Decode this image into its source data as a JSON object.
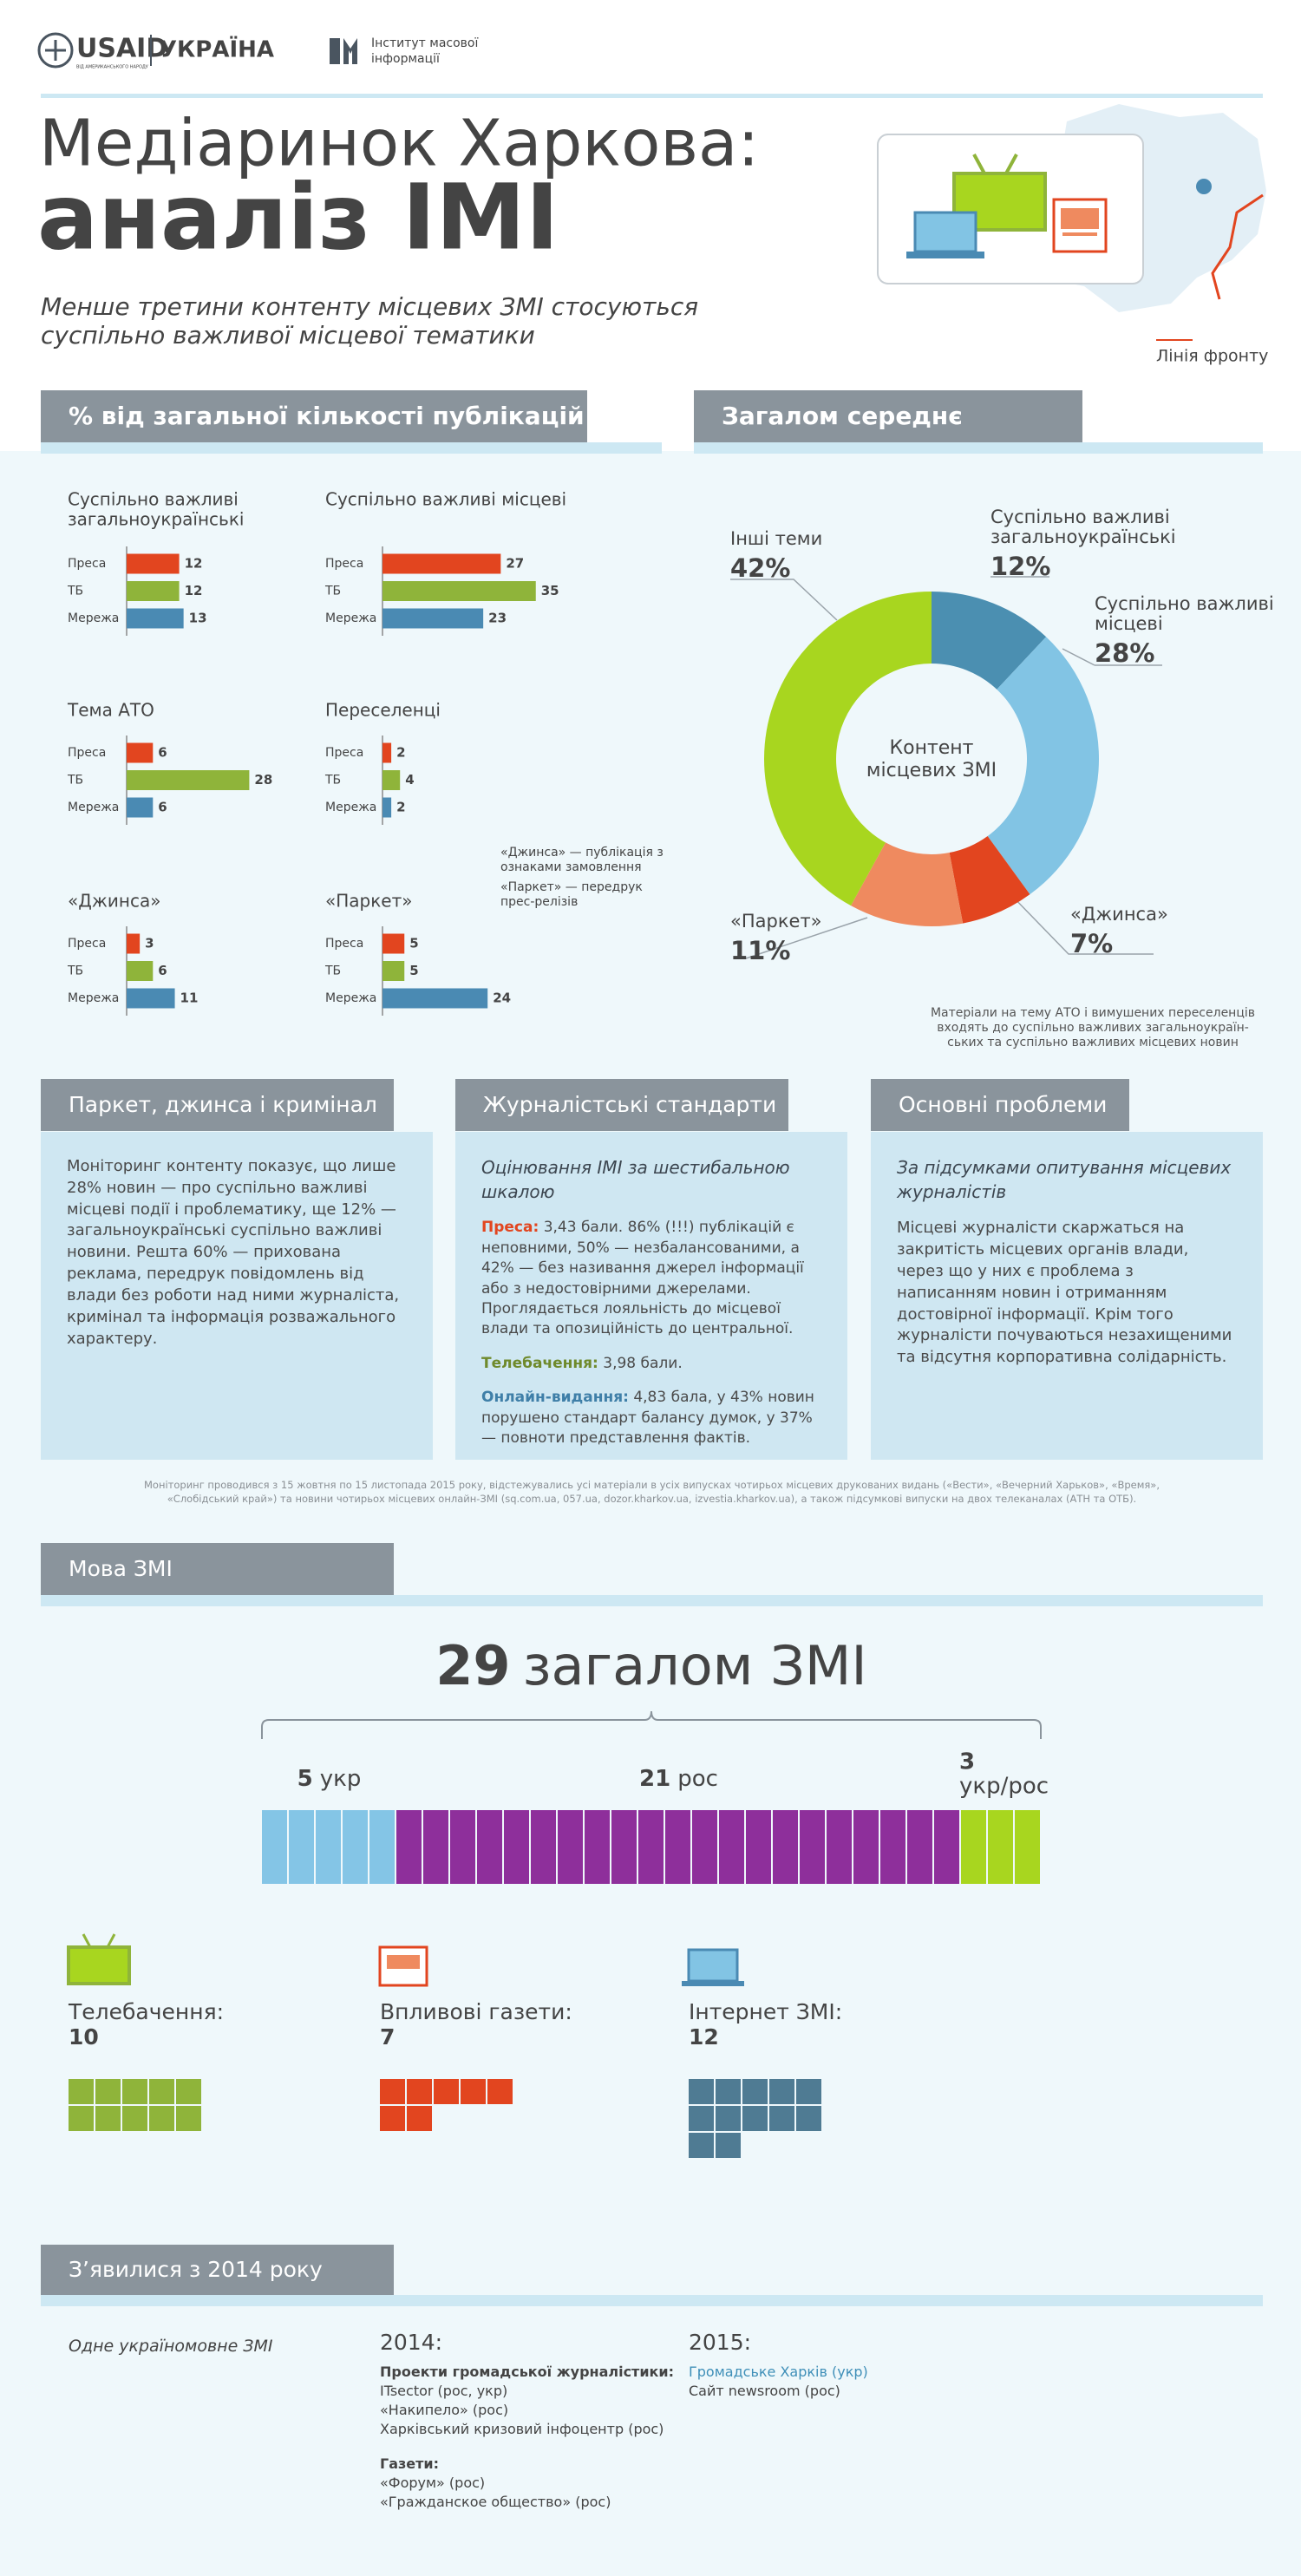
{
  "header": {
    "usaid": "USAID",
    "usaid_sub": "ВІД АМЕРИКАНСЬКОГО НАРОДУ",
    "country": "УКРАЇНА",
    "imi": [
      "Інститут масової",
      "інформації"
    ]
  },
  "title": [
    "Медіаринок Харкова:",
    "аналіз ІМІ"
  ],
  "subtitle": [
    "Менше третини контенту місцевих ЗМІ стосуються",
    "суспільно важливої місцевої тематики"
  ],
  "map_legend": "Лінія фронту",
  "publications": {
    "heading": "% від загальної кількості публікацій",
    "row_labels": [
      "Преса",
      "ТБ",
      "Мережа"
    ],
    "colors": [
      "#e2451f",
      "#8fb43a",
      "#4a8ab3"
    ],
    "charts": [
      {
        "title": [
          "Суспільно важливі",
          "загальноукраїнські"
        ],
        "values": [
          12,
          12,
          13
        ]
      },
      {
        "title": [
          "Суспільно важливі місцеві"
        ],
        "values": [
          27,
          35,
          23
        ]
      },
      {
        "title": [
          "Тема АТО"
        ],
        "values": [
          6,
          28,
          6
        ]
      },
      {
        "title": [
          "Переселенці"
        ],
        "values": [
          2,
          4,
          2
        ]
      },
      {
        "title": [
          "«Джинса»"
        ],
        "values": [
          3,
          6,
          11
        ]
      },
      {
        "title": [
          "«Паркет»"
        ],
        "values": [
          5,
          5,
          24
        ]
      }
    ],
    "notes": [
      [
        "«Джинса» — публікація з",
        "ознаками замовлення"
      ],
      [
        "«Паркет» — передрук",
        "прес-релізів"
      ]
    ]
  },
  "average": {
    "heading": "Загалом середнє",
    "center": [
      "Контент",
      "місцевих ЗМІ"
    ],
    "segments": [
      {
        "name": [
          "Суспільно важливі",
          "загальноукраїнські"
        ],
        "value": 12,
        "value_label": "12%",
        "color": "#4b8fb1"
      },
      {
        "name": [
          "Суспільно важливі",
          "місцеві"
        ],
        "value": 28,
        "value_label": "28%",
        "color": "#82c4e4"
      },
      {
        "name": [
          "«Джинса»"
        ],
        "value": 7,
        "value_label": "7%",
        "color": "#e2451f"
      },
      {
        "name": [
          "«Паркет»"
        ],
        "value": 11,
        "value_label": "11%",
        "color": "#ef8a5f"
      },
      {
        "name": [
          "Інші теми"
        ],
        "value": 42,
        "value_label": "42%",
        "color": "#a8d61f"
      }
    ],
    "note": [
      "Матеріали на тему АТО і вимушених переселенців",
      "входять до суспільно важливих загальноукраїн-",
      "ських та суспільно важливих місцевих новин"
    ]
  },
  "panels": [
    {
      "heading": "Паркет, джинса і кримінал",
      "text": "Моніторинг контенту показує, що лише 28% новин — про суспільно важливі місцеві події і проблематику, ще 12% — загально­українські суспільно важливі новини. Решта 60% — прихована реклама, передрук повідомлень від влади без роботи над ними журналіста, кримінал та інформація розважального характеру."
    },
    {
      "heading": "Журналістські стандарти",
      "lead": "Оцінювання ІМІ за шестибальною шкалою",
      "items": [
        {
          "label": "Преса:",
          "text": "3,43 бали. 86% (!!!) публікацій є непов­ними, 50% — незбалансованими, а 42% — без називання джерел інформації або з недосто­вірними джерелами. Проглядається лояльність до місцевої влади та опозиційність до центральної."
        },
        {
          "label": "Телебачення:",
          "text": "3,98 бали."
        },
        {
          "label": "Онлайн-видання:",
          "text": "4,83 бала, у 43% новин порушено стандарт балансу думок, у 37% — повноти представлення фактів."
        }
      ]
    },
    {
      "heading": "Основні проблеми",
      "lead": "За підсумками опитування місцевих журналістів",
      "text": "Місцеві журналісти скаржаться на закритість місцевих органів влади, через що у них є проблема з написанням новин і отриманням достовірної інформації. Крім того журналісти почуваються незахищеними та відсутня корпоративна солідарність."
    }
  ],
  "footnote": [
    "Моніторинг проводився з 15 жовтня по 15 листопада 2015 року, відстежувались усі матеріали в усіх випусках чотирьох місцевих друкованих видань («Вести», «Вечерний Харьков», «Время»,",
    "«Слобідський край») та новини чотирьох місцевих онлайн-ЗМІ (sq.com.ua, 057.ua, dozor.kharkov.ua, izvestia.kharkov.ua), а також підсумкові випуски на двох телеканалах (АТН та ОТБ)."
  ],
  "language": {
    "heading": "Мова ЗМІ",
    "total": 29,
    "total_label": "загалом ЗМІ",
    "groups": [
      {
        "value": 5,
        "label": "укр",
        "color": "#84c5e6"
      },
      {
        "value": 21,
        "label": "рос",
        "color": "#8e2f9b"
      },
      {
        "value": 3,
        "label": "укр/рос",
        "color": "#a8d61f"
      }
    ],
    "media": [
      {
        "label": "Телебачення:",
        "value": 10,
        "color": "#8fb43a"
      },
      {
        "label": "Впливові газети:",
        "value": 7,
        "color": "#e2451f"
      },
      {
        "label": "Інтернет ЗМІ:",
        "value": 12,
        "color": "#4f7b93"
      }
    ]
  },
  "new_media": {
    "heading": "З’явилися з 2014 року",
    "left": "Одне україномовне ЗМІ",
    "y2014": {
      "title": "2014:",
      "groups": [
        {
          "title": "Проекти громадської журналістики:",
          "items": [
            "ITsector (рос, укр)",
            "«Накипело» (рос)",
            "Харківський кризовий інфоцентр (рос)"
          ]
        },
        {
          "title": "Газети:",
          "items": [
            "«Форум» (рос)",
            "«Гражданское общество» (рос)"
          ]
        }
      ]
    },
    "y2015": {
      "title": "2015:",
      "items": [
        "Громадське Харків (укр)",
        "Сайт newsroom (рос)"
      ]
    }
  }
}
